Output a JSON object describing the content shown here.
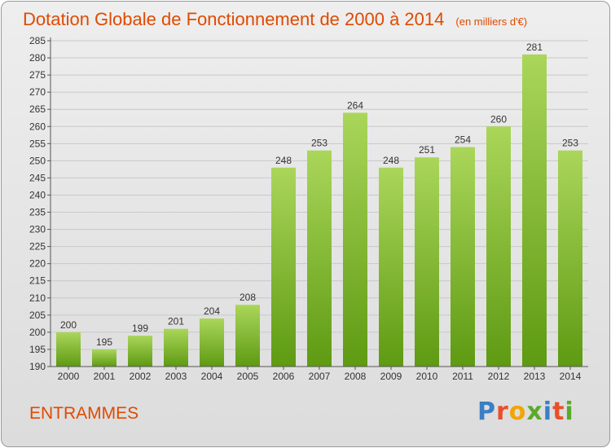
{
  "title": "Dotation Globale de Fonctionnement de 2000 à 2014",
  "unit_note": "(en milliers d'€)",
  "commune": "ENTRAMMES",
  "logo": {
    "text": "Proxiti",
    "colors": [
      "#3a7fc4",
      "#e8502a",
      "#f2a400",
      "#5aaa2a",
      "#3a7fc4",
      "#e8502a",
      "#5aaa2a"
    ]
  },
  "colors": {
    "bar_light": "#aad65a",
    "bar_dark": "#5e9a12",
    "title": "#e04a00"
  },
  "chart_data": {
    "type": "bar",
    "categories": [
      "2000",
      "2001",
      "2002",
      "2003",
      "2004",
      "2005",
      "2006",
      "2007",
      "2008",
      "2009",
      "2010",
      "2011",
      "2012",
      "2013",
      "2014"
    ],
    "values": [
      200,
      195,
      199,
      201,
      204,
      208,
      248,
      253,
      264,
      248,
      251,
      254,
      260,
      281,
      253
    ],
    "data_labels": [
      "200",
      "195",
      "199",
      "201",
      "204",
      "208",
      "248",
      "253",
      "264",
      "248",
      "251",
      "254",
      "260",
      "281",
      "253"
    ],
    "ylim": [
      190,
      285
    ],
    "yticks": [
      "190",
      "195",
      "200",
      "205",
      "210",
      "215",
      "220",
      "225",
      "230",
      "235",
      "240",
      "245",
      "250",
      "255",
      "260",
      "265",
      "270",
      "275",
      "280",
      "285"
    ],
    "grid": true,
    "xlabel": "",
    "ylabel": ""
  }
}
